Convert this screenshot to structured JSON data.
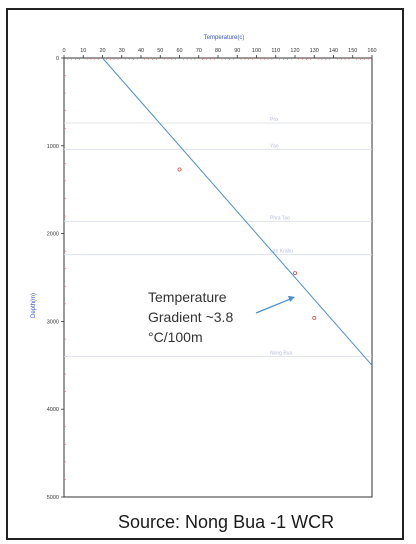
{
  "chart_data": {
    "type": "line",
    "title": "",
    "xlabel": "Temperature(c)",
    "ylabel": "Depth(m)",
    "xlim": [
      0,
      160
    ],
    "ylim": [
      5000,
      0
    ],
    "x_ticks": [
      0,
      10,
      20,
      30,
      40,
      50,
      60,
      70,
      80,
      90,
      100,
      110,
      120,
      130,
      140,
      150,
      160
    ],
    "y_ticks": [
      0,
      1000,
      2000,
      3000,
      4000,
      5000
    ],
    "series": [
      {
        "name": "",
        "color": "#4a8fd0",
        "x": [
          20,
          160
        ],
        "y": [
          0,
          3500
        ]
      }
    ],
    "points": [
      {
        "x": 60,
        "y": 1270,
        "color": "#e05050"
      },
      {
        "x": 120,
        "y": 2450,
        "color": "#e05050"
      },
      {
        "x": 130,
        "y": 2960,
        "color": "#e05050"
      }
    ],
    "formations": [
      {
        "name": "Pnx",
        "depth": 740
      },
      {
        "name": "Yao",
        "depth": 1040
      },
      {
        "name": "Phra Tao",
        "depth": 1860
      },
      {
        "name": "Lan Krabu",
        "depth": 2240
      },
      {
        "name": "Nong Bua",
        "depth": 3400
      }
    ],
    "annotation": {
      "lines": [
        "Temperature",
        "Gradient ~3.8",
        "°C/100m"
      ],
      "arrow_target": {
        "x": 120,
        "y": 2720
      }
    }
  },
  "source": "Source:  Nong Bua -1 WCR"
}
